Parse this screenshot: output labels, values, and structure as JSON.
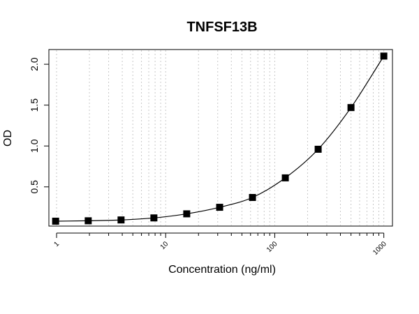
{
  "chart_data": {
    "type": "scatter",
    "title": "TNFSF13B",
    "xlabel": "Concentration (ng/ml)",
    "ylabel": "OD",
    "x_scale": "log",
    "xlim": [
      0.85,
      1200
    ],
    "ylim": [
      0.02,
      2.18
    ],
    "x_tick_values": [
      1,
      10,
      100,
      1000
    ],
    "x_tick_labels": [
      "1",
      "10",
      "100",
      "1000"
    ],
    "y_tick_values": [
      0.5,
      1.0,
      1.5,
      2.0
    ],
    "y_tick_labels": [
      "0.5",
      "1.0",
      "1.5",
      "2.0"
    ],
    "grid": "vertical dotted lines at log minor ticks",
    "marker": "square",
    "fit_curve": true,
    "color": "#000000",
    "points": [
      {
        "x": 0.98,
        "y": 0.08
      },
      {
        "x": 1.95,
        "y": 0.085
      },
      {
        "x": 3.9,
        "y": 0.095
      },
      {
        "x": 7.8,
        "y": 0.12
      },
      {
        "x": 15.6,
        "y": 0.17
      },
      {
        "x": 31.25,
        "y": 0.25
      },
      {
        "x": 62.5,
        "y": 0.37
      },
      {
        "x": 125,
        "y": 0.61
      },
      {
        "x": 250,
        "y": 0.96
      },
      {
        "x": 500,
        "y": 1.47
      },
      {
        "x": 1000,
        "y": 2.1
      }
    ]
  }
}
